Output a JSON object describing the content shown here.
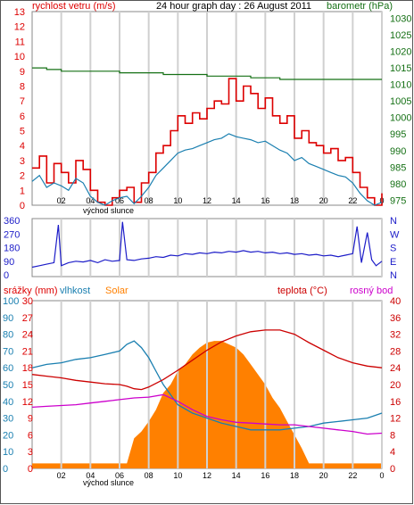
{
  "chart_data": [
    {
      "type": "line",
      "title": "24 hour graph day : 26 August 2011",
      "left_axis_label": "rychlost vetru (m/s)",
      "right_axis_label": "barometr (hPa)",
      "x_ticks": [
        "02",
        "04",
        "06",
        "08",
        "10",
        "12",
        "14",
        "16",
        "18",
        "20",
        "22",
        "0"
      ],
      "x_note": "východ slunce",
      "y_left_ticks": [
        13,
        12,
        11,
        10,
        9,
        8,
        7,
        6,
        5,
        4,
        3,
        2,
        1,
        0
      ],
      "y_right_ticks": [
        1030,
        1025,
        1020,
        1015,
        1010,
        1005,
        1000,
        995,
        990,
        985,
        980,
        975
      ],
      "ylim_left": [
        0,
        13
      ],
      "ylim_right": [
        973.5,
        1032
      ],
      "colors": {
        "gust": "#dd0000",
        "wind": "#1a7fb0",
        "pressure": "#157015",
        "left_axis": "#dd0000",
        "right_axis": "#157015"
      },
      "series": [
        {
          "axis": "left",
          "style": "step",
          "x": [
            0,
            0.5,
            1,
            1.5,
            2,
            2.5,
            3,
            3.5,
            4,
            4.5,
            5,
            5.5,
            6,
            6.5,
            7,
            7.5,
            8,
            8.5,
            9,
            9.5,
            10,
            10.5,
            11,
            11.5,
            12,
            12.5,
            13,
            13.5,
            14,
            14.5,
            15,
            15.5,
            16,
            16.5,
            17,
            17.5,
            18,
            18.5,
            19,
            19.5,
            20,
            20.5,
            21,
            21.5,
            22,
            22.5,
            23,
            23.5,
            24
          ],
          "y": [
            2.5,
            3.3,
            1.5,
            2.8,
            2.2,
            1.5,
            3.0,
            2.4,
            1.0,
            0.2,
            0,
            0.5,
            1.0,
            1.2,
            0.2,
            1.5,
            2.2,
            3.5,
            4.0,
            5.0,
            6.0,
            5.5,
            6.2,
            5.8,
            6.5,
            7.0,
            6.8,
            8.5,
            7.0,
            8.0,
            7.5,
            6.5,
            7.2,
            6.0,
            5.5,
            6.0,
            4.5,
            5.0,
            4.2,
            4.0,
            3.5,
            3.8,
            3.0,
            3.2,
            2.2,
            1.2,
            0.5,
            0,
            0.8
          ]
        },
        {
          "axis": "left",
          "style": "line",
          "x": [
            0,
            0.5,
            1,
            1.5,
            2,
            2.5,
            3,
            3.5,
            4,
            4.5,
            5,
            5.5,
            6,
            6.5,
            7,
            7.5,
            8,
            8.5,
            9,
            9.5,
            10,
            10.5,
            11,
            11.5,
            12,
            12.5,
            13,
            13.5,
            14,
            14.5,
            15,
            15.5,
            16,
            16.5,
            17,
            17.5,
            18,
            18.5,
            19,
            19.5,
            20,
            20.5,
            21,
            21.5,
            22,
            22.5,
            23,
            23.5,
            24
          ],
          "y": [
            1.6,
            2.0,
            1.2,
            1.5,
            1.3,
            1.0,
            1.8,
            1.5,
            0.6,
            0.2,
            0,
            0.3,
            0.5,
            0.6,
            0.1,
            0.6,
            1.2,
            2.0,
            2.5,
            3.0,
            3.5,
            3.7,
            3.8,
            4.0,
            4.2,
            4.4,
            4.5,
            4.8,
            4.6,
            4.5,
            4.4,
            4.2,
            4.3,
            4.0,
            3.7,
            3.5,
            3.0,
            3.2,
            2.8,
            2.6,
            2.4,
            2.2,
            2.0,
            1.9,
            1.5,
            0.8,
            0.3,
            0,
            0.2
          ]
        },
        {
          "axis": "right",
          "style": "step",
          "x": [
            0,
            1,
            2,
            4,
            6,
            8,
            9,
            10,
            12,
            14,
            15,
            16,
            17,
            18,
            20,
            22,
            24
          ],
          "y": [
            1015.0,
            1014.5,
            1014.0,
            1014.0,
            1013.5,
            1013.5,
            1013.0,
            1013.0,
            1012.5,
            1012.5,
            1012.0,
            1012.0,
            1011.5,
            1011.5,
            1011.5,
            1011.5,
            1011.5
          ]
        }
      ]
    },
    {
      "type": "line",
      "left_ticks": [
        "360",
        "270",
        "180",
        "90",
        "0"
      ],
      "right_letters": [
        "N",
        "W",
        "S",
        "E",
        "N"
      ],
      "ylim": [
        0,
        360
      ],
      "colors": {
        "series": "#1c1cc8"
      },
      "series": [
        {
          "x": [
            0,
            0.5,
            1,
            1.5,
            1.8,
            2,
            2.5,
            3,
            3.5,
            4,
            4.5,
            5,
            5.5,
            6,
            6.2,
            6.5,
            7,
            7.5,
            8,
            8.5,
            9,
            9.5,
            10,
            10.5,
            11,
            11.5,
            12,
            12.5,
            13,
            13.5,
            14,
            14.5,
            15,
            15.5,
            16,
            16.5,
            17,
            17.5,
            18,
            18.5,
            19,
            19.5,
            20,
            20.5,
            21,
            21.5,
            22,
            22.3,
            22.6,
            23,
            23.3,
            23.6,
            24
          ],
          "y": [
            50,
            60,
            70,
            80,
            330,
            60,
            80,
            90,
            85,
            95,
            80,
            100,
            90,
            95,
            350,
            100,
            95,
            105,
            110,
            120,
            115,
            130,
            125,
            140,
            135,
            145,
            140,
            150,
            145,
            155,
            150,
            160,
            150,
            155,
            145,
            150,
            140,
            145,
            135,
            140,
            130,
            135,
            125,
            130,
            120,
            130,
            140,
            320,
            80,
            280,
            100,
            60,
            90
          ]
        }
      ]
    },
    {
      "type": "line",
      "labels": {
        "rain": "srážky (mm)",
        "humidity": "vlhkost",
        "solar": "Solar",
        "temperature": "teplota (°C)",
        "dewpoint": "rosný bod"
      },
      "x_ticks": [
        "02",
        "04",
        "06",
        "08",
        "10",
        "12",
        "14",
        "16",
        "18",
        "20",
        "22",
        "0"
      ],
      "x_note": "východ slunce",
      "axis_rain_ticks": [
        30,
        27,
        24,
        21,
        18,
        15,
        12,
        9,
        6,
        3,
        0
      ],
      "axis_humidity_ticks": [
        100,
        90,
        80,
        70,
        60,
        50,
        40,
        30,
        20,
        10,
        0
      ],
      "axis_temperature_ticks": [
        40,
        36,
        32,
        28,
        24,
        20,
        16,
        12,
        8,
        4,
        0
      ],
      "ylim_humidity": [
        0,
        100
      ],
      "ylim_temperature": [
        0,
        40
      ],
      "colors": {
        "rain_axis": "#dd0000",
        "humidity": "#1a7fb0",
        "solar": "#ff8000",
        "temperature": "#cc0000",
        "dewpoint": "#cc00cc"
      },
      "series": [
        {
          "axis": "humidity",
          "style": "area",
          "x": [
            0,
            6.5,
            7,
            7.5,
            8,
            8.5,
            9,
            9.5,
            10,
            10.5,
            11,
            11.5,
            12,
            12.5,
            13,
            13.5,
            14,
            14.5,
            15,
            15.5,
            16,
            16.5,
            17,
            17.5,
            18,
            18.5,
            19,
            24
          ],
          "y": [
            3,
            3,
            18,
            22,
            28,
            35,
            45,
            50,
            58,
            62,
            68,
            72,
            75,
            76,
            76,
            74,
            72,
            68,
            62,
            56,
            50,
            42,
            36,
            28,
            20,
            12,
            3,
            3
          ]
        },
        {
          "axis": "humidity",
          "style": "line",
          "x": [
            0,
            1,
            2,
            3,
            4,
            5,
            6,
            6.5,
            7,
            7.5,
            8,
            8.5,
            9,
            10,
            11,
            12,
            13,
            14,
            15,
            16,
            17,
            18,
            19,
            20,
            21,
            22,
            23,
            24
          ],
          "y": [
            60,
            62,
            63,
            65,
            66,
            68,
            70,
            74,
            76,
            72,
            66,
            58,
            50,
            38,
            33,
            30,
            27,
            25,
            23,
            23,
            23,
            24,
            25,
            27,
            28,
            29,
            30,
            33
          ]
        },
        {
          "axis": "temperature",
          "style": "line",
          "x": [
            0,
            1,
            2,
            3,
            4,
            5,
            6,
            6.5,
            7,
            7.5,
            8,
            9,
            10,
            11,
            12,
            13,
            14,
            15,
            16,
            17,
            18,
            19,
            20,
            21,
            22,
            23,
            24
          ],
          "y": [
            22.4,
            22.0,
            21.6,
            21.0,
            20.6,
            20.2,
            20.0,
            19.6,
            19.0,
            18.8,
            19.4,
            21.2,
            23.4,
            25.8,
            28.2,
            30.2,
            31.6,
            32.6,
            33.0,
            33.0,
            32.0,
            30.0,
            28.2,
            26.4,
            25.2,
            24.4,
            24.0
          ]
        },
        {
          "axis": "temperature",
          "style": "line",
          "x": [
            0,
            1,
            2,
            3,
            4,
            5,
            6,
            7,
            8,
            9,
            10,
            11,
            12,
            13,
            14,
            15,
            16,
            17,
            18,
            19,
            20,
            21,
            22,
            23,
            24
          ],
          "y": [
            14.6,
            14.8,
            15.0,
            15.2,
            15.6,
            16.0,
            16.4,
            16.8,
            17.0,
            17.6,
            16.0,
            14.0,
            12.4,
            11.6,
            11.0,
            10.8,
            10.6,
            10.4,
            10.4,
            10.0,
            9.6,
            9.2,
            8.8,
            8.2,
            8.4
          ]
        }
      ]
    }
  ]
}
